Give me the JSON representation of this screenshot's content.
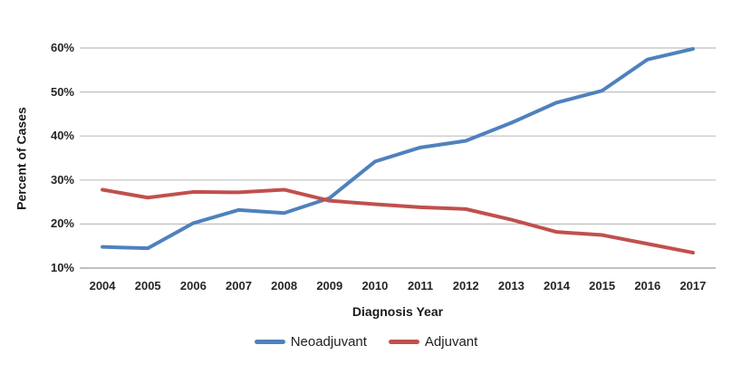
{
  "chart_data": {
    "type": "line",
    "title": "",
    "xlabel": "Diagnosis Year",
    "ylabel": "Percent of Cases",
    "categories": [
      "2004",
      "2005",
      "2006",
      "2007",
      "2008",
      "2009",
      "2010",
      "2011",
      "2012",
      "2013",
      "2014",
      "2015",
      "2016",
      "2017"
    ],
    "series": [
      {
        "name": "Neoadjuvant",
        "color": "#4F81BD",
        "values": [
          14.8,
          14.5,
          20.2,
          23.2,
          22.5,
          25.9,
          34.2,
          37.4,
          38.9,
          43.0,
          47.6,
          50.3,
          57.4,
          59.8
        ]
      },
      {
        "name": "Adjuvant",
        "color": "#C0504D",
        "values": [
          27.8,
          26.0,
          27.3,
          27.2,
          27.8,
          25.3,
          24.5,
          23.8,
          23.4,
          21.0,
          18.2,
          17.5,
          15.5,
          13.5
        ]
      }
    ],
    "y_axis": {
      "min": 10,
      "max": 60,
      "step": 10,
      "tick_labels": [
        "10%",
        "20%",
        "30%",
        "40%",
        "50%",
        "60%"
      ]
    },
    "grid": true,
    "legend_position": "bottom",
    "gridline_color": "#BFBFBF",
    "axis_line_color": "#9B9B9B"
  }
}
